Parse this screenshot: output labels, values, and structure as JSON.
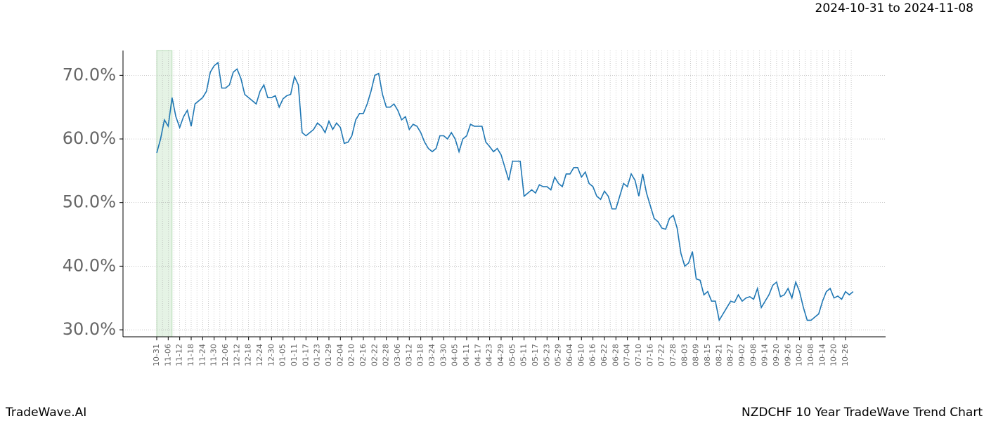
{
  "header": {
    "date_range": "2024-10-31 to 2024-11-08"
  },
  "footer": {
    "brand": "TradeWave.AI",
    "caption": "NZDCHF 10 Year TradeWave Trend Chart"
  },
  "chart_data": {
    "type": "line",
    "categories": [
      "10-31",
      null,
      null,
      "11-06",
      null,
      null,
      "11-12",
      null,
      null,
      "11-18",
      null,
      null,
      "11-24",
      null,
      null,
      "11-30",
      null,
      null,
      "12-06",
      null,
      null,
      "12-12",
      null,
      null,
      "12-18",
      null,
      null,
      "12-24",
      null,
      null,
      "12-30",
      null,
      null,
      "01-05",
      null,
      null,
      "01-11",
      null,
      null,
      "01-17",
      null,
      null,
      "01-23",
      null,
      null,
      "01-29",
      null,
      null,
      "02-04",
      null,
      null,
      "02-10",
      null,
      null,
      "02-16",
      null,
      null,
      "02-22",
      null,
      null,
      "02-28",
      null,
      null,
      "03-06",
      null,
      null,
      "03-12",
      null,
      null,
      "03-18",
      null,
      null,
      "03-24",
      null,
      null,
      "03-30",
      null,
      null,
      "04-05",
      null,
      null,
      "04-11",
      null,
      null,
      "04-17",
      null,
      null,
      "04-23",
      null,
      null,
      "04-29",
      null,
      null,
      "05-05",
      null,
      null,
      "05-11",
      null,
      null,
      "05-17",
      null,
      null,
      "05-23",
      null,
      null,
      "05-29",
      null,
      null,
      "06-04",
      null,
      null,
      "06-10",
      null,
      null,
      "06-16",
      null,
      null,
      "06-22",
      null,
      null,
      "06-28",
      null,
      null,
      "07-04",
      null,
      null,
      "07-10",
      null,
      null,
      "07-16",
      null,
      null,
      "07-22",
      null,
      null,
      "07-28",
      null,
      null,
      "08-03",
      null,
      null,
      "08-09",
      null,
      null,
      "08-15",
      null,
      null,
      "08-21",
      null,
      null,
      "08-27",
      null,
      null,
      "09-02",
      null,
      null,
      "09-08",
      null,
      null,
      "09-14",
      null,
      null,
      "09-20",
      null,
      null,
      "09-26",
      null,
      null,
      "10-02",
      null,
      null,
      "10-08",
      null,
      null,
      "10-14",
      null,
      null,
      "10-20",
      null,
      null,
      "10-26",
      null,
      null
    ],
    "series": [
      {
        "color": "#1f77b4",
        "values": [
          57.8,
          60,
          63,
          62,
          66.5,
          63.5,
          61.8,
          63.5,
          64.5,
          62,
          65.5,
          66,
          66.5,
          67.5,
          70.5,
          71.5,
          72,
          68,
          68,
          68.5,
          70.5,
          71,
          69.5,
          67,
          66.5,
          66,
          65.5,
          67.5,
          68.5,
          66.5,
          66.5,
          66.8,
          65,
          66.3,
          66.8,
          67,
          69.8,
          68.5,
          61,
          60.5,
          61,
          61.5,
          62.5,
          62,
          61,
          62.8,
          61.5,
          62.5,
          61.8,
          59.3,
          59.5,
          60.5,
          63,
          64,
          64,
          65.5,
          67.5,
          70,
          70.3,
          67,
          65,
          65,
          65.5,
          64.5,
          63,
          63.5,
          61.5,
          62.3,
          62,
          61,
          59.5,
          58.5,
          58,
          58.5,
          60.5,
          60.5,
          60,
          61,
          60,
          58,
          60,
          60.5,
          62.3,
          62,
          62,
          62,
          59.5,
          58.8,
          58,
          58.5,
          57.5,
          55.5,
          53.5,
          56.5,
          56.5,
          56.5,
          51,
          51.5,
          52,
          51.5,
          52.8,
          52.5,
          52.5,
          52,
          54,
          53,
          52.5,
          54.5,
          54.5,
          55.5,
          55.5,
          54,
          54.8,
          53,
          52.5,
          51,
          50.5,
          51.8,
          51,
          49,
          49,
          51,
          53,
          52.5,
          54.5,
          53.5,
          51,
          54.5,
          51.5,
          49.5,
          47.5,
          47,
          46,
          45.8,
          47.5,
          48,
          46,
          42,
          40,
          40.5,
          42.3,
          38,
          37.8,
          35.5,
          36,
          34.5,
          34.5,
          31.5,
          32.5,
          33.5,
          34.5,
          34.3,
          35.5,
          34.5,
          35,
          35.2,
          34.8,
          36.5,
          33.5,
          34.5,
          35.5,
          37,
          37.5,
          35.2,
          35.5,
          36.5,
          35,
          37.5,
          36,
          33.5,
          31.5,
          31.5,
          32,
          32.5,
          34.5,
          36,
          36.5,
          35,
          35.3,
          34.8,
          36,
          35.5,
          36
        ]
      }
    ],
    "ylim": [
      28.9,
      73.9
    ],
    "yticks": [
      {
        "value": 30,
        "label": "30.0%"
      },
      {
        "value": 40,
        "label": "40.0%"
      },
      {
        "value": 50,
        "label": "50.0%"
      },
      {
        "value": 60,
        "label": "60.0%"
      },
      {
        "value": 70,
        "label": "70.0%"
      }
    ],
    "grid": true
  }
}
